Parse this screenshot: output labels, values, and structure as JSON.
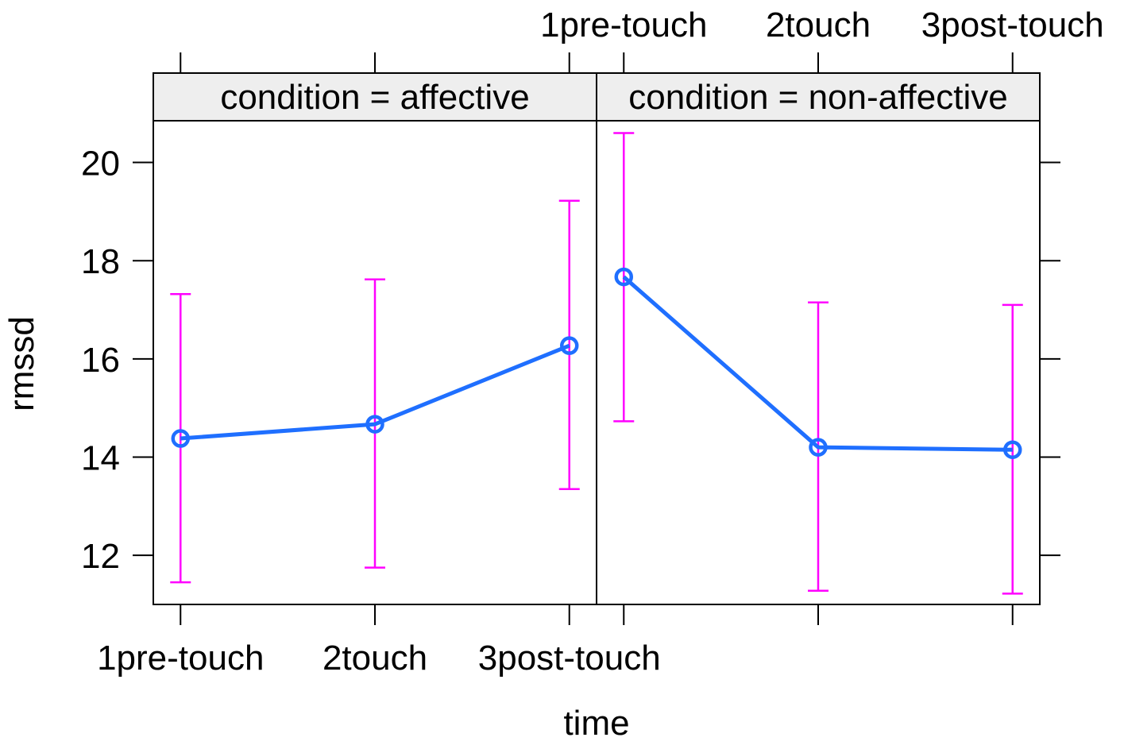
{
  "chart_data": {
    "type": "line",
    "xlabel": "time",
    "ylabel": "rmssd",
    "categories": [
      "1pre-touch",
      "2touch",
      "3post-touch"
    ],
    "yticks": [
      12,
      14,
      16,
      18,
      20
    ],
    "ylim": [
      11.0,
      20.85
    ],
    "panels": [
      {
        "strip": "condition = affective",
        "mean": [
          14.38,
          14.67,
          16.27
        ],
        "lower": [
          11.45,
          11.75,
          13.35
        ],
        "upper": [
          17.32,
          17.62,
          19.22
        ]
      },
      {
        "strip": "condition = non-affective",
        "mean": [
          17.67,
          14.2,
          14.15
        ],
        "lower": [
          14.73,
          11.28,
          11.22
        ],
        "upper": [
          20.6,
          17.15,
          17.1
        ]
      }
    ],
    "colors": {
      "line": "#1f6fff",
      "errorbar": "#ff00ff",
      "strip_bg": "#eeeeee",
      "frame": "#000000"
    },
    "grid": false,
    "legend": "none"
  }
}
